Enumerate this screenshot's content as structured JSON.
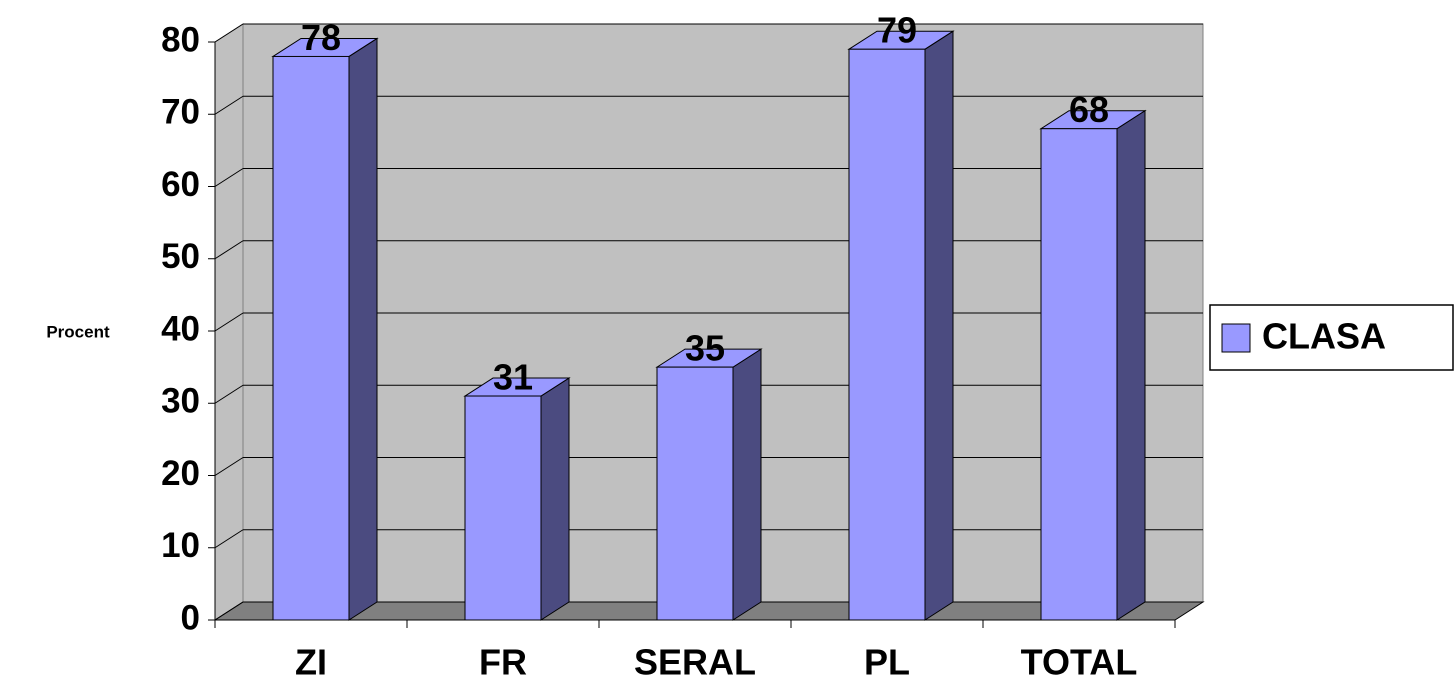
{
  "chart_data": {
    "type": "bar",
    "y_label": "Procent",
    "categories": [
      "ZI",
      "FR",
      "SERAL",
      "PL",
      "TOTAL"
    ],
    "series": [
      {
        "name": "CLASA",
        "color": "#9999ff",
        "values": [
          78,
          31,
          35,
          79,
          68
        ]
      }
    ],
    "ylim": [
      0,
      80
    ],
    "yticks": [
      0,
      10,
      20,
      30,
      40,
      50,
      60,
      70,
      80
    ],
    "grid": true,
    "legend": "right"
  }
}
